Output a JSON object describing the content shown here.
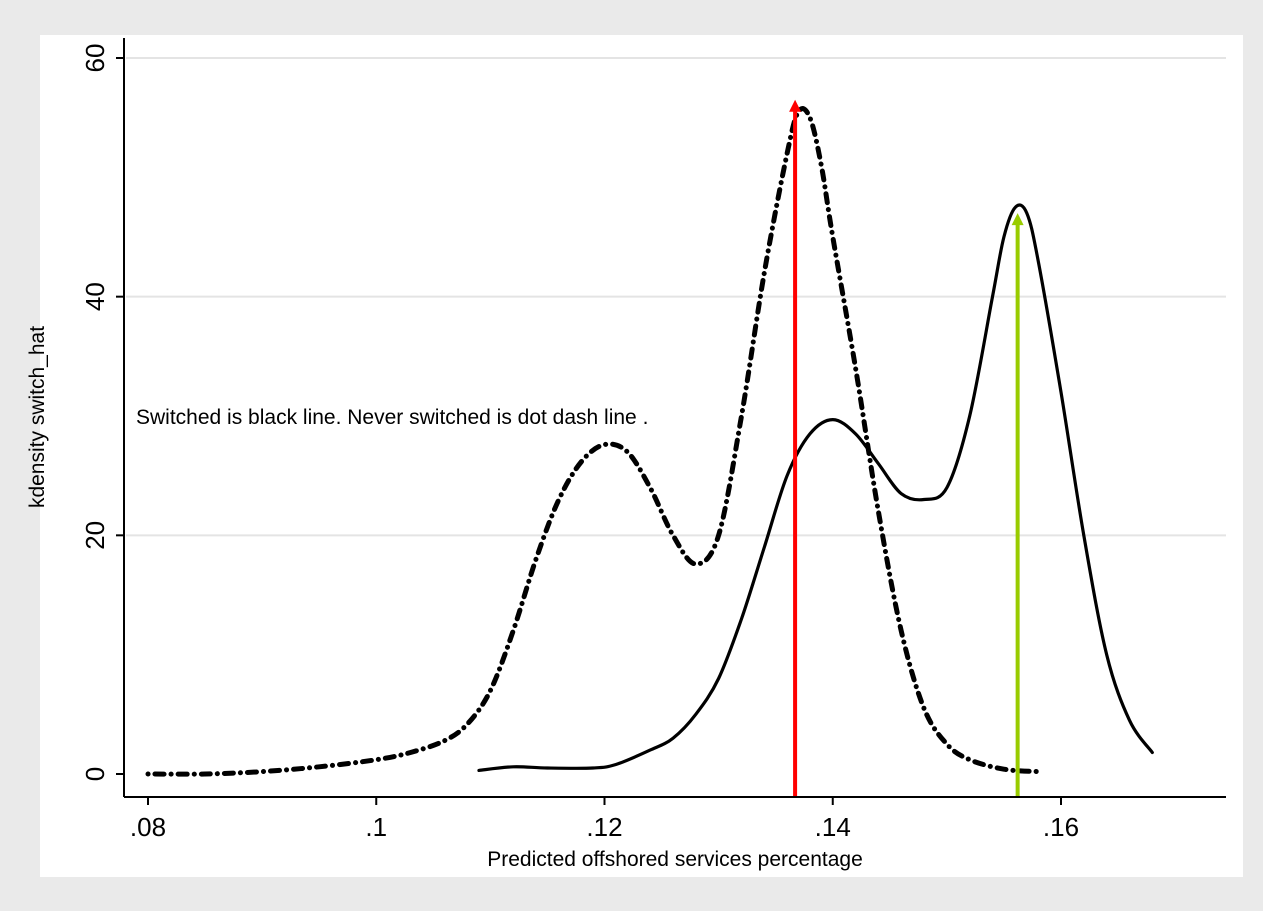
{
  "chart_data": {
    "type": "line",
    "xlabel": "Predicted offshored services percentage",
    "ylabel": "kdensity switch_hat",
    "annotation": "Switched is black line. Never switched is dot dash line .",
    "xlim": [
      0.08,
      0.17
    ],
    "ylim": [
      0,
      62
    ],
    "x_ticks": [
      0.08,
      0.1,
      0.12,
      0.14,
      0.16
    ],
    "x_tick_labels": [
      ".08",
      ".1",
      ".12",
      ".14",
      ".16"
    ],
    "y_ticks": [
      0,
      20,
      40,
      60
    ],
    "y_tick_labels": [
      "0",
      "20",
      "40",
      "60"
    ],
    "grid": "horizontal",
    "legend": "none",
    "series": [
      {
        "style": "dot-dash",
        "color": "#000000",
        "points": [
          [
            0.08,
            0
          ],
          [
            0.085,
            0
          ],
          [
            0.09,
            0.2
          ],
          [
            0.095,
            0.6
          ],
          [
            0.1,
            1.2
          ],
          [
            0.103,
            1.8
          ],
          [
            0.106,
            2.8
          ],
          [
            0.108,
            4.2
          ],
          [
            0.11,
            7
          ],
          [
            0.112,
            12
          ],
          [
            0.114,
            18
          ],
          [
            0.116,
            23
          ],
          [
            0.118,
            26.2
          ],
          [
            0.12,
            27.6
          ],
          [
            0.122,
            27
          ],
          [
            0.124,
            24
          ],
          [
            0.126,
            20
          ],
          [
            0.128,
            17.6
          ],
          [
            0.13,
            20
          ],
          [
            0.132,
            30
          ],
          [
            0.134,
            42
          ],
          [
            0.136,
            52
          ],
          [
            0.137,
            55.5
          ],
          [
            0.138,
            55
          ],
          [
            0.139,
            51
          ],
          [
            0.14,
            45
          ],
          [
            0.142,
            34
          ],
          [
            0.144,
            22
          ],
          [
            0.146,
            12
          ],
          [
            0.148,
            5.5
          ],
          [
            0.15,
            2.5
          ],
          [
            0.152,
            1.2
          ],
          [
            0.155,
            0.4
          ],
          [
            0.158,
            0.2
          ]
        ]
      },
      {
        "style": "solid",
        "color": "#000000",
        "points": [
          [
            0.109,
            0.3
          ],
          [
            0.112,
            0.6
          ],
          [
            0.115,
            0.5
          ],
          [
            0.119,
            0.5
          ],
          [
            0.121,
            0.8
          ],
          [
            0.124,
            2
          ],
          [
            0.126,
            3
          ],
          [
            0.128,
            5
          ],
          [
            0.13,
            8
          ],
          [
            0.132,
            13
          ],
          [
            0.134,
            19
          ],
          [
            0.136,
            25
          ],
          [
            0.138,
            28.5
          ],
          [
            0.14,
            29.7
          ],
          [
            0.142,
            28.5
          ],
          [
            0.144,
            26
          ],
          [
            0.146,
            23.5
          ],
          [
            0.148,
            23
          ],
          [
            0.15,
            24
          ],
          [
            0.152,
            30
          ],
          [
            0.154,
            40
          ],
          [
            0.155,
            45
          ],
          [
            0.156,
            47.5
          ],
          [
            0.157,
            47
          ],
          [
            0.158,
            43
          ],
          [
            0.16,
            32
          ],
          [
            0.162,
            20
          ],
          [
            0.164,
            10
          ],
          [
            0.166,
            4.5
          ],
          [
            0.168,
            1.8
          ]
        ]
      }
    ],
    "markers": [
      {
        "x": 0.1367,
        "y": 56.5,
        "color": "#ff0000"
      },
      {
        "x": 0.1562,
        "y": 47,
        "color": "#99cc00"
      }
    ],
    "colors": {
      "background": "#eaeaea",
      "plot_background": "#ffffff",
      "grid": "#e4e4e4"
    }
  }
}
